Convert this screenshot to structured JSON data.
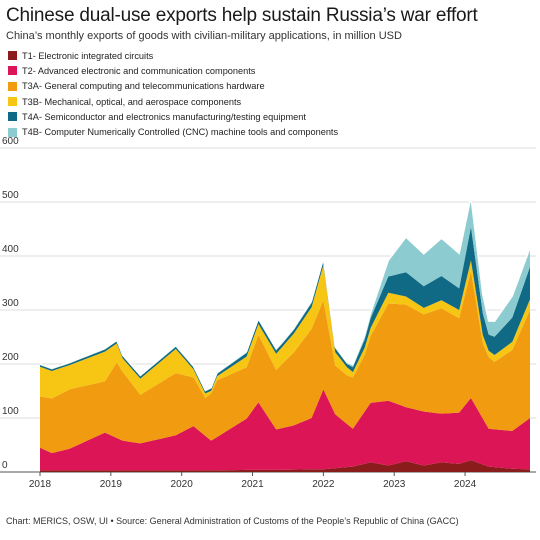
{
  "title": "Chinese dual-use exports help sustain Russia’s war effort",
  "subtitle": "China’s monthly exports of goods with civilian-military applications, in million USD",
  "source": "Chart: MERICS, OSW, UI • Source: General Administration of Customs of the People’s Republic of China (GACC)",
  "chart_data": {
    "type": "area",
    "stacked": true,
    "x_unit": "month",
    "x_start": "2018-01",
    "x_end": "2024-12",
    "xlim": [
      "2018-01",
      "2024-12"
    ],
    "x_ticks": [
      "2018",
      "2019",
      "2020",
      "2021",
      "2022",
      "2023",
      "2024"
    ],
    "ylim": [
      0,
      600
    ],
    "y_ticks": [
      0,
      100,
      200,
      300,
      400,
      500,
      600
    ],
    "grid": true,
    "legend_position": "top-left",
    "series": [
      {
        "name": "T1- Electronic integrated circuits",
        "color": "#8b1c1c",
        "points": [
          [
            "2018-01",
            3
          ],
          [
            "2018-06",
            3
          ],
          [
            "2019-01",
            3
          ],
          [
            "2019-06",
            3
          ],
          [
            "2020-01",
            3
          ],
          [
            "2020-06",
            3
          ],
          [
            "2021-01",
            4
          ],
          [
            "2021-06",
            4
          ],
          [
            "2021-11",
            5
          ],
          [
            "2022-01",
            5
          ],
          [
            "2022-06",
            10
          ],
          [
            "2022-09",
            18
          ],
          [
            "2022-12",
            12
          ],
          [
            "2023-03",
            20
          ],
          [
            "2023-06",
            12
          ],
          [
            "2023-09",
            18
          ],
          [
            "2023-12",
            15
          ],
          [
            "2024-02",
            22
          ],
          [
            "2024-05",
            10
          ],
          [
            "2024-09",
            6
          ],
          [
            "2024-12",
            5
          ]
        ]
      },
      {
        "name": "T2- Advanced electronic and communication components",
        "color": "#dc1556",
        "points": [
          [
            "2018-01",
            42
          ],
          [
            "2018-03",
            32
          ],
          [
            "2018-06",
            40
          ],
          [
            "2018-12",
            70
          ],
          [
            "2019-03",
            55
          ],
          [
            "2019-06",
            50
          ],
          [
            "2019-12",
            65
          ],
          [
            "2020-03",
            82
          ],
          [
            "2020-06",
            55
          ],
          [
            "2020-12",
            95
          ],
          [
            "2021-02",
            125
          ],
          [
            "2021-05",
            75
          ],
          [
            "2021-08",
            82
          ],
          [
            "2021-11",
            95
          ],
          [
            "2022-01",
            148
          ],
          [
            "2022-03",
            100
          ],
          [
            "2022-06",
            70
          ],
          [
            "2022-09",
            110
          ],
          [
            "2022-12",
            120
          ],
          [
            "2023-03",
            100
          ],
          [
            "2023-06",
            100
          ],
          [
            "2023-09",
            90
          ],
          [
            "2023-12",
            95
          ],
          [
            "2024-02",
            115
          ],
          [
            "2024-05",
            70
          ],
          [
            "2024-09",
            70
          ],
          [
            "2024-12",
            95
          ]
        ]
      },
      {
        "name": "T3A- General computing and telecommunications hardware",
        "color": "#f19b10",
        "points": [
          [
            "2018-01",
            95
          ],
          [
            "2018-06",
            110
          ],
          [
            "2018-12",
            95
          ],
          [
            "2019-02",
            140
          ],
          [
            "2019-06",
            90
          ],
          [
            "2019-12",
            115
          ],
          [
            "2020-03",
            90
          ],
          [
            "2020-05",
            70
          ],
          [
            "2020-07",
            105
          ],
          [
            "2020-12",
            95
          ],
          [
            "2021-02",
            125
          ],
          [
            "2021-05",
            110
          ],
          [
            "2021-08",
            135
          ],
          [
            "2021-11",
            165
          ],
          [
            "2022-01",
            165
          ],
          [
            "2022-03",
            90
          ],
          [
            "2022-05",
            90
          ],
          [
            "2022-08",
            105
          ],
          [
            "2022-12",
            180
          ],
          [
            "2023-03",
            190
          ],
          [
            "2023-06",
            180
          ],
          [
            "2023-09",
            195
          ],
          [
            "2023-12",
            175
          ],
          [
            "2024-02",
            235
          ],
          [
            "2024-04",
            140
          ],
          [
            "2024-06",
            125
          ],
          [
            "2024-09",
            150
          ],
          [
            "2024-12",
            200
          ]
        ]
      },
      {
        "name": "T3B- Mechanical, optical, and aerospace components",
        "color": "#f7c614",
        "points": [
          [
            "2018-01",
            55
          ],
          [
            "2018-06",
            45
          ],
          [
            "2018-12",
            55
          ],
          [
            "2019-03",
            25
          ],
          [
            "2019-06",
            30
          ],
          [
            "2019-12",
            45
          ],
          [
            "2020-03",
            15
          ],
          [
            "2020-06",
            5
          ],
          [
            "2020-12",
            20
          ],
          [
            "2021-02",
            20
          ],
          [
            "2021-05",
            30
          ],
          [
            "2021-08",
            35
          ],
          [
            "2021-11",
            40
          ],
          [
            "2022-01",
            65
          ],
          [
            "2022-03",
            25
          ],
          [
            "2022-06",
            10
          ],
          [
            "2022-09",
            15
          ],
          [
            "2022-12",
            20
          ],
          [
            "2023-03",
            15
          ],
          [
            "2023-06",
            12
          ],
          [
            "2023-09",
            15
          ],
          [
            "2023-12",
            15
          ],
          [
            "2024-02",
            20
          ],
          [
            "2024-05",
            12
          ],
          [
            "2024-09",
            15
          ],
          [
            "2024-12",
            20
          ]
        ]
      },
      {
        "name": "T4A- Semiconductor and electronics manufacturing/testing equipment",
        "color": "#106a85",
        "points": [
          [
            "2018-01",
            3
          ],
          [
            "2018-06",
            3
          ],
          [
            "2019-01",
            4
          ],
          [
            "2019-06",
            4
          ],
          [
            "2020-01",
            4
          ],
          [
            "2020-06",
            4
          ],
          [
            "2021-01",
            7
          ],
          [
            "2021-06",
            6
          ],
          [
            "2021-11",
            8
          ],
          [
            "2022-01",
            8
          ],
          [
            "2022-05",
            6
          ],
          [
            "2022-09",
            18
          ],
          [
            "2022-12",
            30
          ],
          [
            "2023-03",
            45
          ],
          [
            "2023-06",
            40
          ],
          [
            "2023-09",
            45
          ],
          [
            "2023-12",
            40
          ],
          [
            "2024-02",
            62
          ],
          [
            "2024-05",
            30
          ],
          [
            "2024-09",
            45
          ],
          [
            "2024-12",
            60
          ]
        ]
      },
      {
        "name": "T4B- Computer Numerically Controlled (CNC) machine tools and components",
        "color": "#8ccbcf",
        "points": [
          [
            "2018-01",
            2
          ],
          [
            "2018-06",
            2
          ],
          [
            "2019-01",
            2
          ],
          [
            "2019-06",
            2
          ],
          [
            "2020-01",
            2
          ],
          [
            "2020-06",
            2
          ],
          [
            "2021-01",
            3
          ],
          [
            "2021-06",
            3
          ],
          [
            "2021-11",
            4
          ],
          [
            "2022-01",
            4
          ],
          [
            "2022-05",
            3
          ],
          [
            "2022-09",
            10
          ],
          [
            "2022-12",
            30
          ],
          [
            "2023-03",
            65
          ],
          [
            "2023-06",
            60
          ],
          [
            "2023-09",
            70
          ],
          [
            "2023-12",
            65
          ],
          [
            "2024-02",
            55
          ],
          [
            "2024-05",
            25
          ],
          [
            "2024-09",
            40
          ],
          [
            "2024-12",
            35
          ]
        ]
      }
    ]
  }
}
